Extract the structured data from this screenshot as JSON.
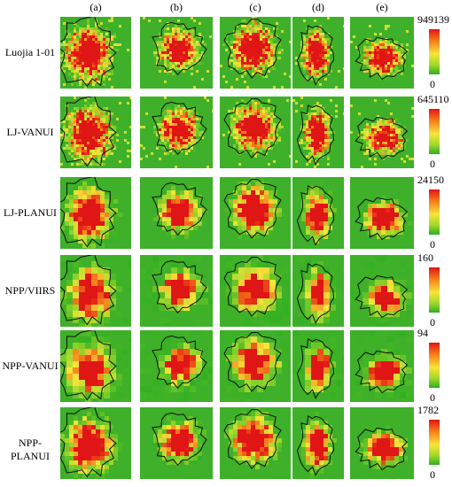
{
  "columns": [
    "(a)",
    "(b)",
    "(c)",
    "(d)",
    "(e)"
  ],
  "rows": [
    {
      "label": "Luojia 1-01",
      "cbar_max": "949139",
      "cbar_min": "0",
      "style": "speckle"
    },
    {
      "label": "LJ-VANUI",
      "cbar_max": "645110",
      "cbar_min": "0",
      "style": "speckle"
    },
    {
      "label": "LJ-PLANUI",
      "cbar_max": "24150",
      "cbar_min": "0",
      "style": "smooth"
    },
    {
      "label": "NPP/VIIRS",
      "cbar_max": "160",
      "cbar_min": "0",
      "style": "block"
    },
    {
      "label": "NPP-VANUI",
      "cbar_max": "94",
      "cbar_min": "0",
      "style": "block"
    },
    {
      "label": "NPP-PLANUI",
      "cbar_max": "1782",
      "cbar_min": "0",
      "style": "smooth"
    }
  ],
  "colors": {
    "low": "#2fae22",
    "mid": "#f7e43a",
    "high": "#e01515",
    "boundary": "#111111"
  }
}
